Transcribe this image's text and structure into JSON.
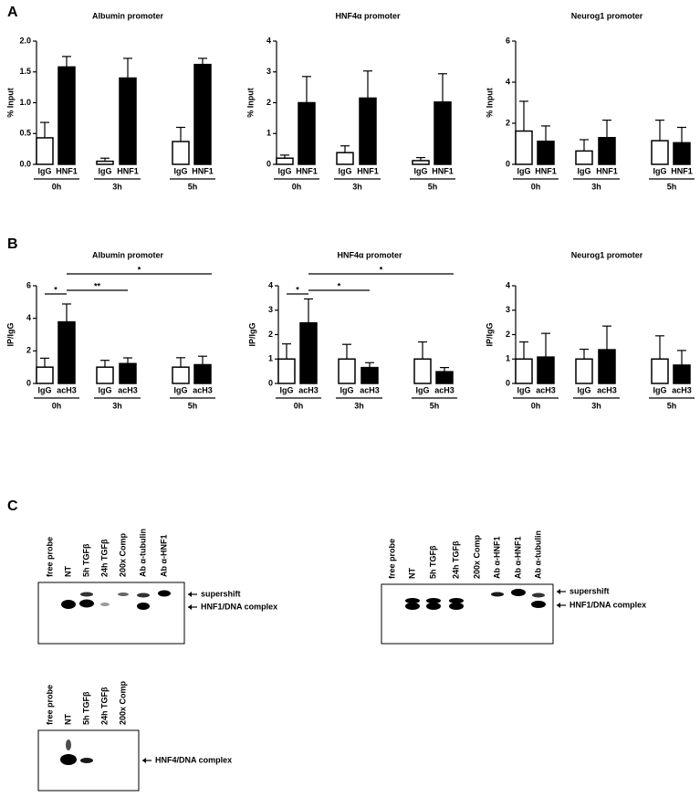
{
  "panels": {
    "a": "A",
    "b": "B",
    "c": "C"
  },
  "chart_data": [
    {
      "type": "bar",
      "title": "Albumin promoter",
      "y_label": "% Input",
      "categories": [
        "0h",
        "3h",
        "5h"
      ],
      "series": [
        {
          "name": "IgG",
          "color": "#ffffff",
          "values": [
            0.43,
            0.05,
            0.37
          ],
          "errors": [
            0.25,
            0.05,
            0.23
          ]
        },
        {
          "name": "HNF1",
          "color": "#000000",
          "values": [
            1.58,
            1.4,
            1.62
          ],
          "errors": [
            0.17,
            0.32,
            0.1
          ]
        }
      ],
      "ylim": [
        0,
        2
      ],
      "yticks": [
        {
          "value": 0,
          "label": "0.0"
        },
        0.5,
        {
          "value": 1,
          "label": "1.0"
        },
        1.5,
        {
          "value": 2,
          "label": "2.0"
        }
      ]
    },
    {
      "type": "bar",
      "title": "HNF4α promoter",
      "y_label": "% Input",
      "categories": [
        "0h",
        "3h",
        "5h"
      ],
      "series": [
        {
          "name": "IgG",
          "color": "#ffffff",
          "values": [
            0.2,
            0.38,
            0.12
          ],
          "errors": [
            0.1,
            0.22,
            0.1
          ]
        },
        {
          "name": "HNF1",
          "color": "#000000",
          "values": [
            2.0,
            2.15,
            2.02
          ],
          "errors": [
            0.85,
            0.88,
            0.92
          ]
        }
      ],
      "ylim": [
        0,
        4
      ],
      "yticks": [
        0,
        1,
        2,
        3,
        4
      ]
    },
    {
      "type": "bar",
      "title": "Neurog1 promoter",
      "y_label": "% Input",
      "categories": [
        "0h",
        "3h",
        "5h"
      ],
      "series": [
        {
          "name": "IgG",
          "color": "#ffffff",
          "values": [
            1.62,
            0.65,
            1.15
          ],
          "errors": [
            1.45,
            0.55,
            1.0
          ]
        },
        {
          "name": "HNF1",
          "color": "#000000",
          "values": [
            1.12,
            1.3,
            1.05
          ],
          "errors": [
            0.75,
            0.85,
            0.75
          ]
        }
      ],
      "ylim": [
        0,
        6
      ],
      "yticks": [
        0,
        2,
        4,
        6
      ]
    },
    {
      "type": "bar",
      "title": "Albumin promoter",
      "y_label": "IP/IgG",
      "categories": [
        "0h",
        "3h",
        "5h"
      ],
      "series": [
        {
          "name": "IgG",
          "color": "#ffffff",
          "values": [
            1,
            1,
            1
          ],
          "errors": [
            0.55,
            0.42,
            0.58
          ]
        },
        {
          "name": "acH3",
          "color": "#000000",
          "values": [
            3.78,
            1.22,
            1.15
          ],
          "errors": [
            1.1,
            0.35,
            0.52
          ]
        }
      ],
      "ylim": [
        0,
        6
      ],
      "yticks": [
        0,
        2,
        4,
        6
      ],
      "significance": [
        "*",
        "**",
        "*"
      ]
    },
    {
      "type": "bar",
      "title": "HNF4α promoter",
      "y_label": "IP/IgG",
      "categories": [
        "0h",
        "3h",
        "5h"
      ],
      "series": [
        {
          "name": "IgG",
          "color": "#ffffff",
          "values": [
            1,
            1,
            1
          ],
          "errors": [
            0.62,
            0.6,
            0.7
          ]
        },
        {
          "name": "acH3",
          "color": "#000000",
          "values": [
            2.48,
            0.65,
            0.48
          ],
          "errors": [
            0.98,
            0.2,
            0.17
          ]
        }
      ],
      "ylim": [
        0,
        4
      ],
      "yticks": [
        0,
        1,
        2,
        3,
        4
      ],
      "significance": [
        "*",
        "*",
        "*"
      ]
    },
    {
      "type": "bar",
      "title": "Neurog1 promoter",
      "y_label": "IP/IgG",
      "categories": [
        "0h",
        "3h",
        "5h"
      ],
      "series": [
        {
          "name": "IgG",
          "color": "#ffffff",
          "values": [
            1,
            1,
            1
          ],
          "errors": [
            0.7,
            0.4,
            0.95
          ]
        },
        {
          "name": "acH3",
          "color": "#000000",
          "values": [
            1.08,
            1.38,
            0.75
          ],
          "errors": [
            0.97,
            0.97,
            0.6
          ]
        }
      ],
      "ylim": [
        0,
        4
      ],
      "yticks": [
        0,
        1,
        2,
        3,
        4
      ]
    }
  ],
  "blots": [
    {
      "lanes": [
        "free probe",
        "NT",
        "5h TGFβ",
        "24h TGFβ",
        "200x Comp",
        "Ab α-tubulin",
        "Ab α-HNF1"
      ],
      "labels": [
        "supershift",
        "HNF1/DNA complex"
      ]
    },
    {
      "lanes": [
        "free probe",
        "NT",
        "5h TGFβ",
        "24h TGFβ",
        "200x Comp",
        "Ab α-HNF1",
        "Ab α-HNF1",
        "Ab α-tubulin"
      ],
      "labels": [
        "supershift",
        "HNF1/DNA complex"
      ]
    },
    {
      "lanes": [
        "free probe",
        "NT",
        "5h TGFβ",
        "24h TGFβ",
        "200x Comp"
      ],
      "labels": [
        "HNF4/DNA complex"
      ]
    }
  ]
}
